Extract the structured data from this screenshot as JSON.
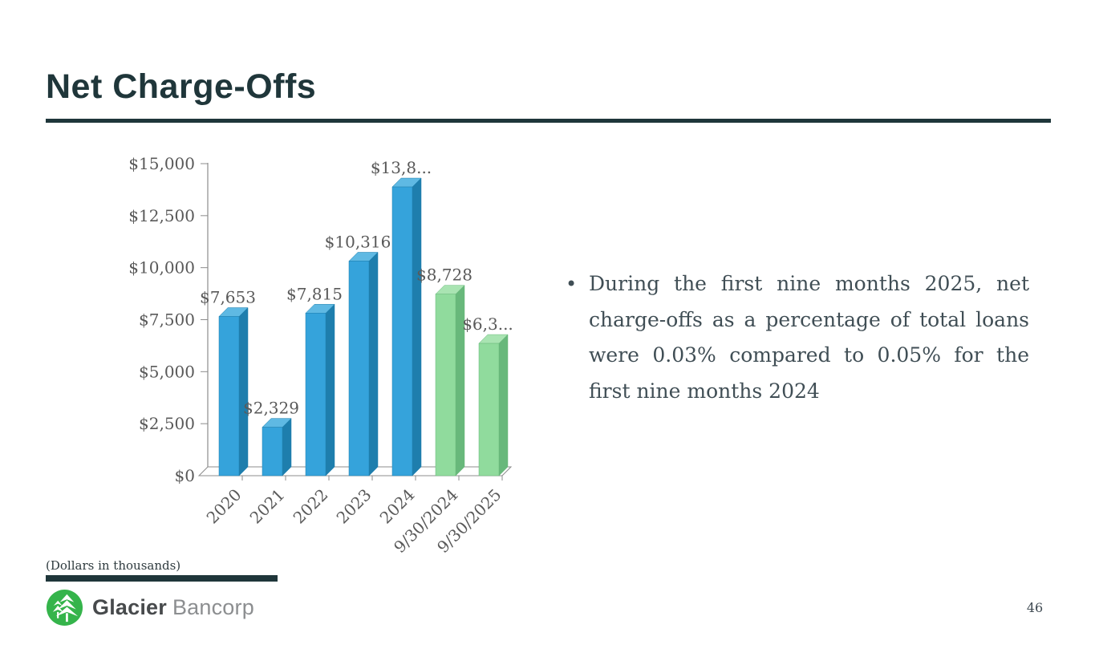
{
  "slide": {
    "title": "Net Charge-Offs",
    "page_number": "46",
    "footnote": "(Dollars in thousands)",
    "logo": {
      "brand_bold": "Glacier",
      "brand_light": "Bancorp"
    }
  },
  "bullet": {
    "marker": "•",
    "full_text": "During the first nine months 2025, net charge-offs as a percentage of total loans were 0.03% compared to 0.05% for the first nine months 2024",
    "lines": [
      "During the first nine months 2025, net",
      "charge-offs as a percentage of total loans",
      "were 0.03% compared to 0.05% for the",
      "first nine months 2024"
    ]
  },
  "chart_data": {
    "type": "bar",
    "style": "3d-column",
    "title": "",
    "xlabel": "",
    "ylabel": "",
    "units_note": "(Dollars in thousands)",
    "categories": [
      "2020",
      "2021",
      "2022",
      "2023",
      "2024",
      "9/30/2024",
      "9/30/2025"
    ],
    "values": [
      7653,
      2329,
      7815,
      10316,
      13880,
      8728,
      6360
    ],
    "labels": [
      "$7,653",
      "$2,329",
      "$7,815",
      "$10,316",
      "$13,8...",
      "$8,728",
      "$6,3..."
    ],
    "bar_groups": [
      "blue",
      "blue",
      "blue",
      "blue",
      "blue",
      "green",
      "green"
    ],
    "y_ticks": [
      "$0",
      "$2,500",
      "$5,000",
      "$7,500",
      "$10,000",
      "$12,500",
      "$15,000"
    ],
    "ylim": [
      0,
      15000
    ],
    "grid": false,
    "legend": "none",
    "colors": {
      "blue": {
        "front": "#35A3DB",
        "side": "#1E7EAD",
        "top": "#5FB9E3"
      },
      "green": {
        "front": "#90DB9D",
        "side": "#68B87B",
        "top": "#A9E4B2"
      },
      "axis_line": "#8C8C8C",
      "label_text": "#595959"
    }
  }
}
